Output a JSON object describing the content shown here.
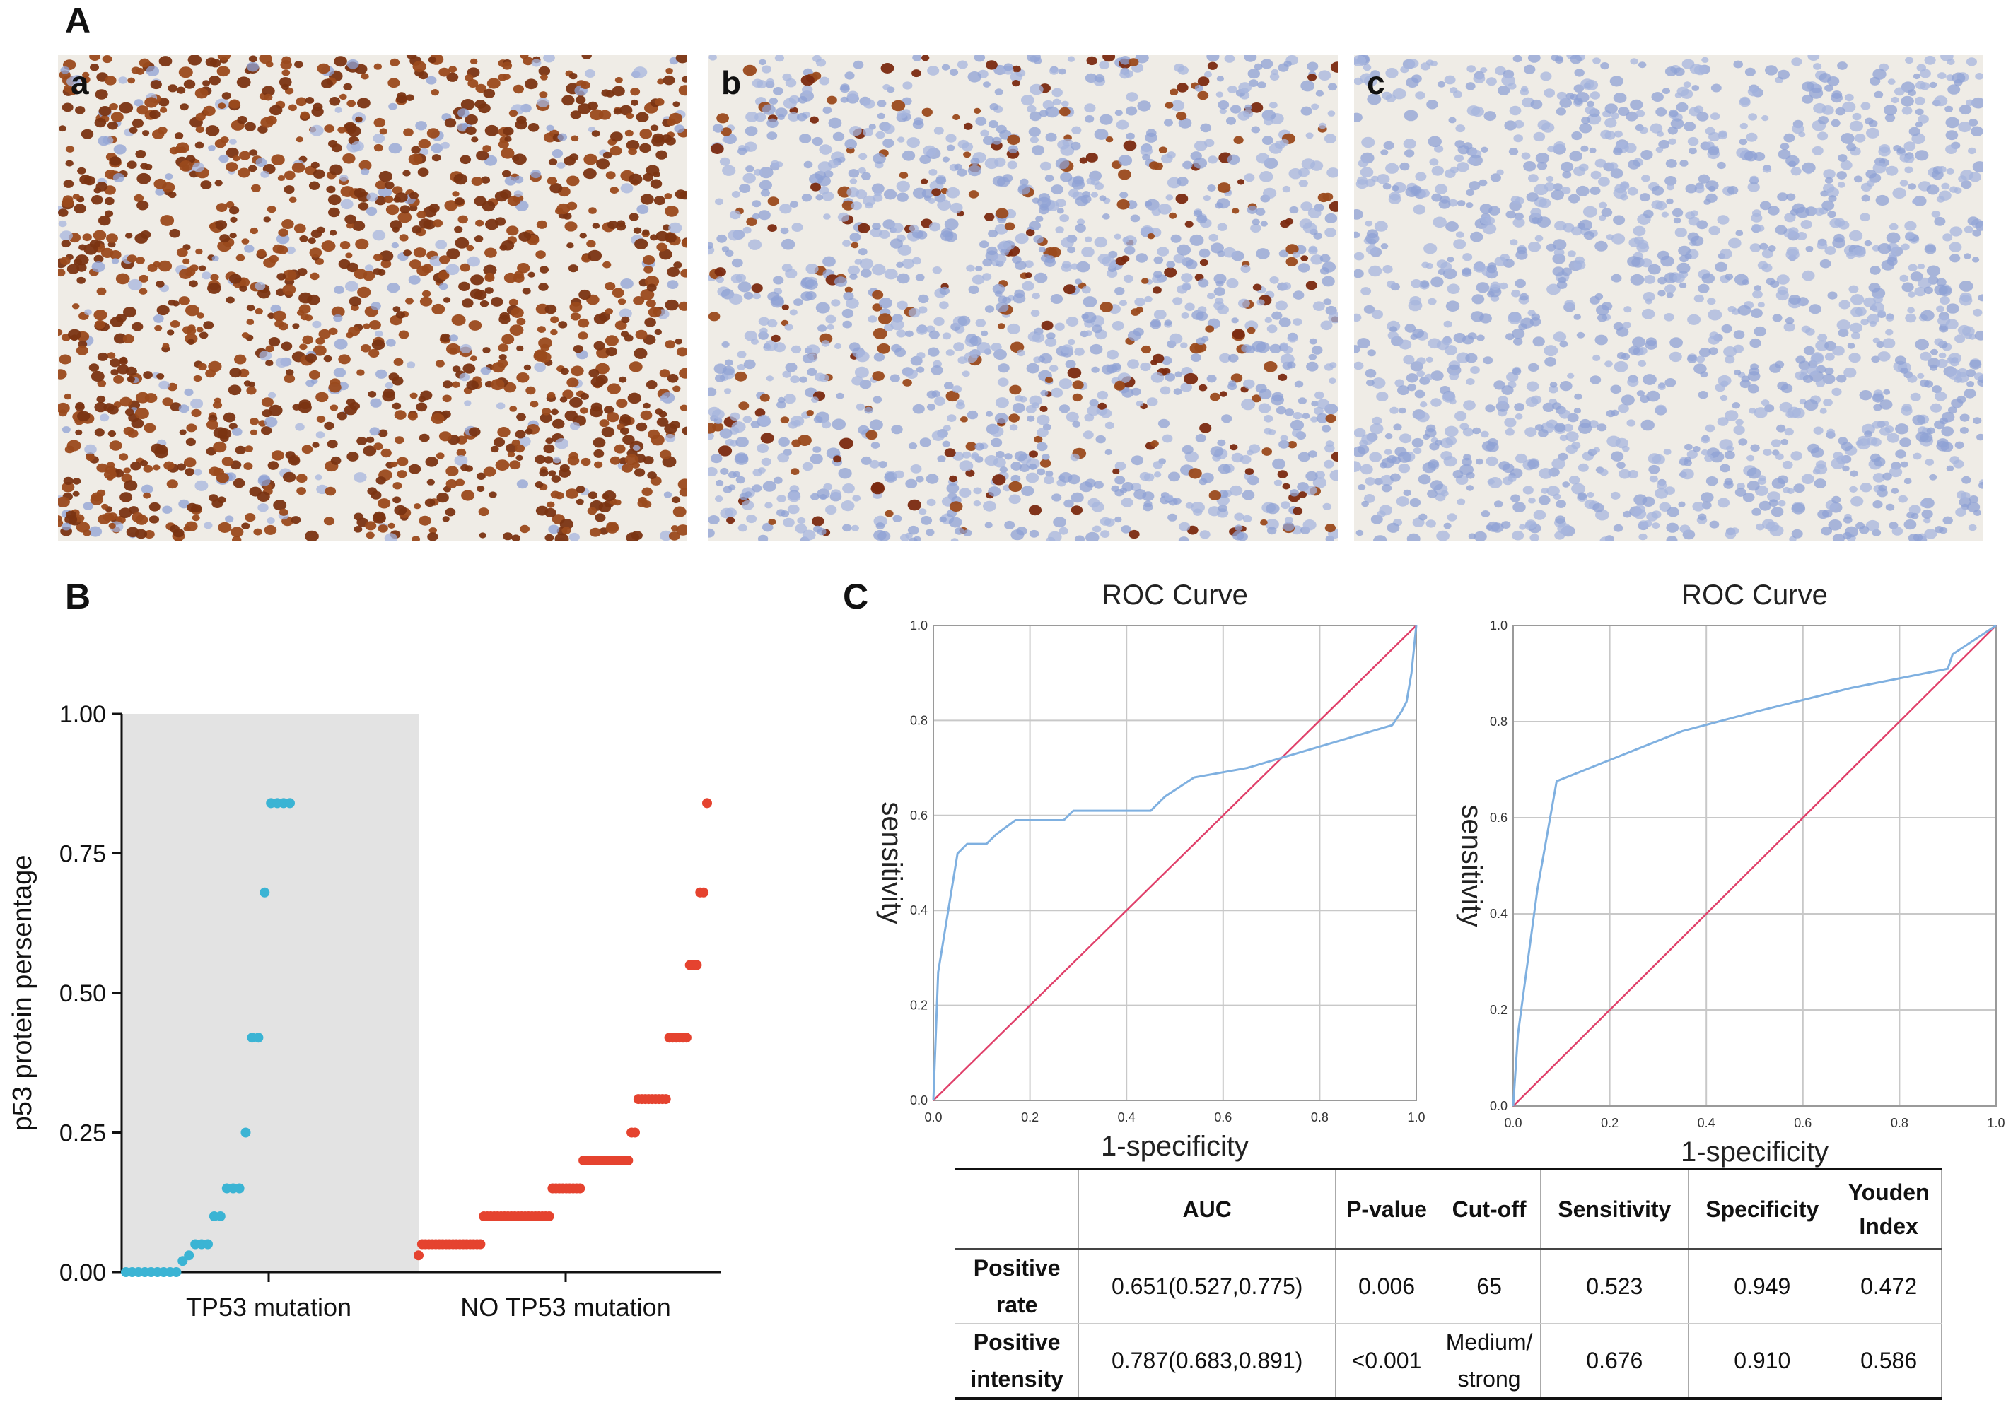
{
  "panels": {
    "A": "A",
    "B": "B",
    "C": "C"
  },
  "micrographs": [
    {
      "label": "a",
      "stain": "#7a3412",
      "density": 0.85
    },
    {
      "label": "b",
      "stain": "#7a2a10",
      "density": 0.18
    },
    {
      "label": "c",
      "stain": "#6f86c6",
      "density": 0.0
    }
  ],
  "colors": {
    "tp53_mutation": "#3bb4d4",
    "no_tp53_mutation": "#e5432f",
    "roc_curve": "#7fb0e0",
    "reference_line": "#e0406a",
    "shade": "#e3e3e3"
  },
  "chart_data": [
    {
      "type": "scatter",
      "panel": "B",
      "ylabel": "p53 protein persentage",
      "xlabel": "",
      "categories": [
        "TP53 mutation",
        "NO TP53 mutation"
      ],
      "ylim": [
        0,
        1.0
      ],
      "yticks": [
        "0.00",
        "0.25",
        "0.50",
        "0.75",
        "1.00"
      ],
      "grid": false,
      "series": [
        {
          "name": "TP53 mutation",
          "values": [
            0,
            0,
            0,
            0,
            0,
            0,
            0,
            0,
            0,
            0.02,
            0.03,
            0.05,
            0.05,
            0.05,
            0.1,
            0.1,
            0.15,
            0.15,
            0.15,
            0.25,
            0.42,
            0.42,
            0.68,
            0.84,
            0.84,
            0.84,
            0.84
          ]
        },
        {
          "name": "NO TP53 mutation",
          "values": [
            0.03,
            0.05,
            0.05,
            0.05,
            0.05,
            0.05,
            0.05,
            0.05,
            0.05,
            0.05,
            0.05,
            0.05,
            0.05,
            0.05,
            0.05,
            0.05,
            0.05,
            0.05,
            0.05,
            0.1,
            0.1,
            0.1,
            0.1,
            0.1,
            0.1,
            0.1,
            0.1,
            0.1,
            0.1,
            0.1,
            0.1,
            0.1,
            0.1,
            0.1,
            0.1,
            0.1,
            0.1,
            0.1,
            0.1,
            0.15,
            0.15,
            0.15,
            0.15,
            0.15,
            0.15,
            0.15,
            0.15,
            0.15,
            0.2,
            0.2,
            0.2,
            0.2,
            0.2,
            0.2,
            0.2,
            0.2,
            0.2,
            0.2,
            0.2,
            0.2,
            0.2,
            0.2,
            0.25,
            0.25,
            0.31,
            0.31,
            0.31,
            0.31,
            0.31,
            0.31,
            0.31,
            0.31,
            0.31,
            0.42,
            0.42,
            0.42,
            0.42,
            0.42,
            0.42,
            0.55,
            0.55,
            0.55,
            0.68,
            0.68,
            0.84
          ]
        }
      ]
    },
    {
      "type": "line",
      "panel": "C-left",
      "title": "ROC Curve",
      "xlabel": "1-specificity",
      "ylabel": "sensitivity",
      "xlim": [
        0,
        1
      ],
      "ylim": [
        0,
        1
      ],
      "ticks": [
        "0.0",
        "0.2",
        "0.4",
        "0.6",
        "0.8",
        "1.0"
      ],
      "grid": true,
      "series": [
        {
          "x": [
            0,
            0.01,
            0.05,
            0.07,
            0.11,
            0.13,
            0.17,
            0.27,
            0.29,
            0.31,
            0.45,
            0.48,
            0.54,
            0.65,
            0.75,
            0.85,
            0.95,
            0.97,
            0.98,
            0.99,
            1.0
          ],
          "y": [
            0,
            0.27,
            0.52,
            0.54,
            0.54,
            0.56,
            0.59,
            0.59,
            0.61,
            0.61,
            0.61,
            0.64,
            0.68,
            0.7,
            0.73,
            0.76,
            0.79,
            0.82,
            0.84,
            0.9,
            1.0
          ]
        },
        {
          "x": [
            0,
            1
          ],
          "y": [
            0,
            1
          ]
        }
      ]
    },
    {
      "type": "line",
      "panel": "C-right",
      "title": "ROC Curve",
      "xlabel": "1-specificity",
      "ylabel": "sensitivity",
      "xlim": [
        0,
        1
      ],
      "ylim": [
        0,
        1
      ],
      "ticks": [
        "0.0",
        "0.2",
        "0.4",
        "0.6",
        "0.8",
        "1.0"
      ],
      "grid": true,
      "series": [
        {
          "x": [
            0,
            0.01,
            0.05,
            0.09,
            0.2,
            0.35,
            0.5,
            0.7,
            0.9,
            0.91,
            1.0
          ],
          "y": [
            0,
            0.15,
            0.45,
            0.676,
            0.72,
            0.78,
            0.82,
            0.87,
            0.91,
            0.94,
            1.0
          ]
        },
        {
          "x": [
            0,
            1
          ],
          "y": [
            0,
            1
          ]
        }
      ]
    }
  ],
  "table": {
    "headers": [
      "",
      "AUC",
      "P-value",
      "Cut-off",
      "Sensitivity",
      "Specificity",
      "Youden Index"
    ],
    "rows": [
      [
        "Positive rate",
        "0.651(0.527,0.775)",
        "0.006",
        "65",
        "0.523",
        "0.949",
        "0.472"
      ],
      [
        "Positive intensity",
        "0.787(0.683,0.891)",
        "<0.001",
        "Medium/ strong",
        "0.676",
        "0.910",
        "0.586"
      ]
    ]
  }
}
